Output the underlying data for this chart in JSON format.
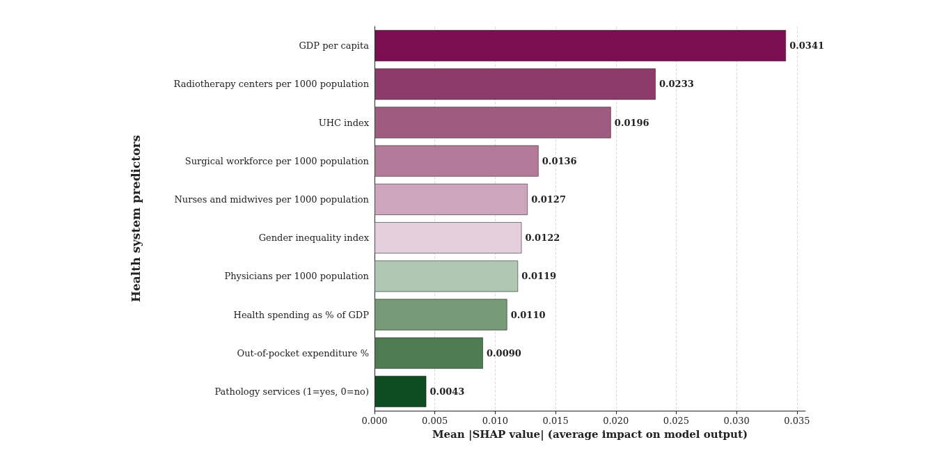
{
  "chart_data": {
    "type": "bar",
    "orientation": "horizontal",
    "xlabel": "Mean |SHAP value| (average impact on model output)",
    "ylabel": "Health system predictors",
    "categories": [
      "GDP per capita",
      "Radiotherapy centers per 1000 population",
      "UHC index",
      "Surgical workforce per 1000 population",
      "Nurses and midwives per 1000 population",
      "Gender inequality index",
      "Physicians per 1000 population",
      "Health spending as % of GDP",
      "Out-of-pocket expenditure %",
      "Pathology services (1=yes, 0=no)"
    ],
    "values": [
      0.0341,
      0.0233,
      0.0196,
      0.0136,
      0.0127,
      0.0122,
      0.0119,
      0.011,
      0.009,
      0.0043
    ],
    "value_labels": [
      "0.0341",
      "0.0233",
      "0.0196",
      "0.0136",
      "0.0127",
      "0.0122",
      "0.0119",
      "0.0110",
      "0.0090",
      "0.0043"
    ],
    "colors": [
      "#7a0e50",
      "#8e3b69",
      "#a05c80",
      "#b47a9a",
      "#cda6be",
      "#e4cfdc",
      "#b2c7b3",
      "#779b76",
      "#4e7b52",
      "#0e4d1f"
    ],
    "xlim": [
      0,
      0.0357
    ],
    "xticks": [
      {
        "value": 0,
        "label": "0.000"
      },
      {
        "value": 0.005,
        "label": "0.005"
      },
      {
        "value": 0.01,
        "label": "0.010"
      },
      {
        "value": 0.015,
        "label": "0.015"
      },
      {
        "value": 0.02,
        "label": "0.020"
      },
      {
        "value": 0.025,
        "label": "0.025"
      },
      {
        "value": 0.03,
        "label": "0.030"
      },
      {
        "value": 0.035,
        "label": "0.035"
      }
    ],
    "grid": "x"
  }
}
